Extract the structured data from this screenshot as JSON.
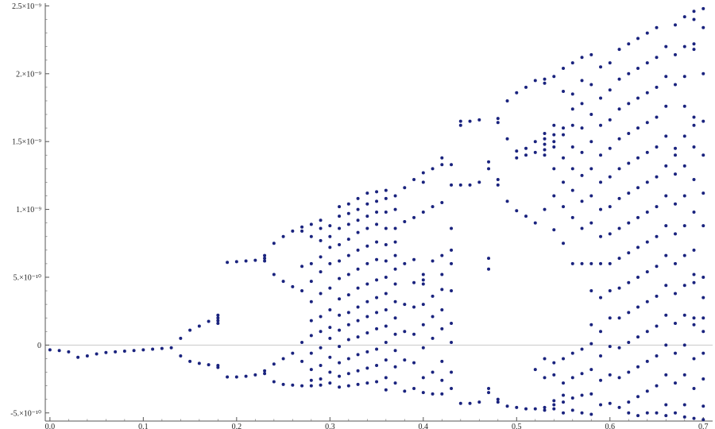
{
  "chart_data": {
    "type": "scatter",
    "title": "",
    "xlabel": "",
    "ylabel": "",
    "xlim": [
      -0.005,
      0.71
    ],
    "ylim": [
      -5.6e-10,
      2.52e-09
    ],
    "grid": false,
    "point_color": "#1a237e",
    "zero_line_color": "#c8c8c8",
    "x_ticks": [
      {
        "value": 0.0,
        "label": "0.0"
      },
      {
        "value": 0.1,
        "label": "0.1"
      },
      {
        "value": 0.2,
        "label": "0.2"
      },
      {
        "value": 0.3,
        "label": "0.3"
      },
      {
        "value": 0.4,
        "label": "0.4"
      },
      {
        "value": 0.5,
        "label": "0.5"
      },
      {
        "value": 0.6,
        "label": "0.6"
      },
      {
        "value": 0.7,
        "label": "0.7"
      }
    ],
    "y_ticks": [
      {
        "value": -5e-10,
        "label": "-5.×10⁻¹⁰"
      },
      {
        "value": 0,
        "label": "0"
      },
      {
        "value": 5e-10,
        "label": "5.×10⁻¹⁰"
      },
      {
        "value": 1e-09,
        "label": "1.×10⁻⁹"
      },
      {
        "value": 1.5e-09,
        "label": "1.5×10⁻⁹"
      },
      {
        "value": 2e-09,
        "label": "2.×10⁻⁹"
      },
      {
        "value": 2.5e-09,
        "label": "2.5×10⁻⁹"
      }
    ],
    "columns": [
      {
        "x": 0.0,
        "y": [
          -3.5e-11
        ]
      },
      {
        "x": 0.01,
        "y": [
          -4e-11
        ]
      },
      {
        "x": 0.02,
        "y": [
          -5e-11
        ]
      },
      {
        "x": 0.03,
        "y": [
          -9e-11
        ]
      },
      {
        "x": 0.04,
        "y": [
          -8e-11
        ]
      },
      {
        "x": 0.05,
        "y": [
          -6.5e-11
        ]
      },
      {
        "x": 0.06,
        "y": [
          -5.5e-11
        ]
      },
      {
        "x": 0.07,
        "y": [
          -5e-11
        ]
      },
      {
        "x": 0.08,
        "y": [
          -4.5e-11
        ]
      },
      {
        "x": 0.09,
        "y": [
          -4e-11
        ]
      },
      {
        "x": 0.1,
        "y": [
          -3.5e-11
        ]
      },
      {
        "x": 0.11,
        "y": [
          -3e-11
        ]
      },
      {
        "x": 0.12,
        "y": [
          -2.5e-11
        ]
      },
      {
        "x": 0.13,
        "y": [
          -2e-11
        ]
      },
      {
        "x": 0.14,
        "y": [
          5e-11,
          -8e-11
        ]
      },
      {
        "x": 0.15,
        "y": [
          1.1e-10,
          -1.2e-10
        ]
      },
      {
        "x": 0.16,
        "y": [
          1.4e-10,
          -1.35e-10
        ]
      },
      {
        "x": 0.17,
        "y": [
          1.75e-10,
          -1.45e-10
        ]
      },
      {
        "x": 0.18,
        "y": [
          2.2e-10,
          2e-10,
          1.8e-10,
          1.6e-10,
          -1.5e-10,
          -1.65e-10
        ]
      },
      {
        "x": 0.19,
        "y": [
          6.1e-10,
          -2.35e-10
        ]
      },
      {
        "x": 0.2,
        "y": [
          6.15e-10,
          -2.35e-10
        ]
      },
      {
        "x": 0.21,
        "y": [
          6.2e-10,
          -2.3e-10
        ]
      },
      {
        "x": 0.22,
        "y": [
          6.25e-10,
          -2.2e-10
        ]
      },
      {
        "x": 0.23,
        "y": [
          6.6e-10,
          6.4e-10,
          6.2e-10,
          -1.9e-10,
          -2.1e-10
        ]
      },
      {
        "x": 0.24,
        "y": [
          7.5e-10,
          5.2e-10,
          -1.4e-10,
          -2.7e-10
        ]
      },
      {
        "x": 0.25,
        "y": [
          8e-10,
          4.7e-10,
          -1e-10,
          -2.9e-10
        ]
      },
      {
        "x": 0.26,
        "y": [
          8.4e-10,
          4.3e-10,
          -6e-11,
          -2.95e-10
        ]
      },
      {
        "x": 0.27,
        "y": [
          8.7e-10,
          8.4e-10,
          5.8e-10,
          4e-10,
          2e-11,
          -1.2e-10,
          -3e-10
        ]
      },
      {
        "x": 0.28,
        "y": [
          8.9e-10,
          8e-10,
          6e-10,
          4.7e-10,
          3.2e-10,
          1.8e-10,
          7e-11,
          -6e-11,
          -1.8e-10,
          -2.6e-10,
          -3e-10
        ]
      },
      {
        "x": 0.29,
        "y": [
          9.2e-10,
          8.6e-10,
          7.7e-10,
          6.5e-10,
          5.4e-10,
          3.8e-10,
          2.1e-10,
          1e-10,
          -2e-11,
          -1.5e-10,
          -2.5e-10,
          -2.95e-10
        ]
      },
      {
        "x": 0.3,
        "y": [
          8.8e-10,
          8e-10,
          7.2e-10,
          6e-10,
          4.2e-10,
          2.6e-10,
          1.3e-10,
          5e-11,
          -9e-11,
          -2e-10,
          -2.8e-10
        ]
      },
      {
        "x": 0.31,
        "y": [
          1.02e-09,
          9.5e-10,
          8.6e-10,
          7.4e-10,
          6.2e-10,
          4.9e-10,
          3.4e-10,
          2.2e-10,
          1.1e-10,
          -1e-11,
          -1.3e-10,
          -2.3e-10,
          -3.1e-10
        ]
      },
      {
        "x": 0.32,
        "y": [
          1.04e-09,
          9.7e-10,
          8.9e-10,
          7.8e-10,
          6.6e-10,
          5.2e-10,
          3.7e-10,
          2.4e-10,
          1.5e-10,
          4e-11,
          -1e-10,
          -2.1e-10,
          -3e-10
        ]
      },
      {
        "x": 0.33,
        "y": [
          1.08e-09,
          1e-09,
          9.2e-10,
          8.3e-10,
          7e-10,
          5.6e-10,
          4.2e-10,
          2.8e-10,
          1.8e-10,
          6e-11,
          -7e-11,
          -1.9e-10,
          -2.9e-10
        ]
      },
      {
        "x": 0.34,
        "y": [
          1.12e-09,
          1.04e-09,
          9.5e-10,
          8.6e-10,
          7.3e-10,
          6e-10,
          4.5e-10,
          3.2e-10,
          2.1e-10,
          9e-11,
          -5e-11,
          -1.7e-10,
          -2.8e-10
        ]
      },
      {
        "x": 0.35,
        "y": [
          1.13e-09,
          1.06e-09,
          9.8e-10,
          8.9e-10,
          7.6e-10,
          6.3e-10,
          4.8e-10,
          3.5e-10,
          2.4e-10,
          1.2e-10,
          -3e-11,
          -1.5e-10,
          -2.7e-10
        ]
      },
      {
        "x": 0.36,
        "y": [
          1.14e-09,
          1.08e-09,
          9.8e-10,
          8.6e-10,
          7.4e-10,
          6.2e-10,
          5e-10,
          3.8e-10,
          2.6e-10,
          1.4e-10,
          2e-11,
          -1.1e-10,
          -2.4e-10,
          -3.3e-10
        ]
      },
      {
        "x": 0.37,
        "y": [
          1.1e-09,
          1e-09,
          8.6e-10,
          7.6e-10,
          6.6e-10,
          5.6e-10,
          4.5e-10,
          3.2e-10,
          2e-10,
          8e-11,
          -4e-11,
          -1.6e-10,
          -2.8e-10
        ]
      },
      {
        "x": 0.38,
        "y": [
          1.16e-09,
          9.1e-10,
          6e-10,
          3e-10,
          1e-10,
          -1.1e-10,
          -3.4e-10
        ]
      },
      {
        "x": 0.39,
        "y": [
          1.22e-09,
          9.4e-10,
          6.3e-10,
          4.6e-10,
          2.8e-10,
          8e-11,
          -1.3e-10,
          -3.2e-10
        ]
      },
      {
        "x": 0.4,
        "y": [
          1.27e-09,
          1.2e-09,
          9.8e-10,
          5.2e-10,
          4.8e-10,
          4.5e-10,
          3e-10,
          1.5e-10,
          -2e-11,
          -2.4e-10,
          -3.5e-10
        ]
      },
      {
        "x": 0.41,
        "y": [
          1.3e-09,
          1.02e-09,
          6.2e-10,
          3.6e-10,
          2.1e-10,
          5e-11,
          -2e-10,
          -3.6e-10
        ]
      },
      {
        "x": 0.42,
        "y": [
          1.38e-09,
          1.33e-09,
          1.05e-09,
          6.6e-10,
          5.2e-10,
          4.1e-10,
          2.6e-10,
          1.2e-10,
          -1.2e-10,
          -2.6e-10,
          -3.6e-10
        ]
      },
      {
        "x": 0.43,
        "y": [
          1.33e-09,
          1.18e-09,
          8.6e-10,
          7e-10,
          6e-10,
          4e-10,
          1.6e-10,
          2e-11,
          -2e-10,
          -3.2e-10
        ]
      },
      {
        "x": 0.44,
        "y": [
          1.65e-09,
          1.62e-09,
          1.18e-09,
          -4.3e-10
        ]
      },
      {
        "x": 0.45,
        "y": [
          1.65e-09,
          1.18e-09,
          -4.3e-10
        ]
      },
      {
        "x": 0.46,
        "y": [
          1.66e-09,
          1.2e-09,
          -4.2e-10
        ]
      },
      {
        "x": 0.47,
        "y": [
          1.35e-09,
          1.3e-09,
          6.4e-10,
          5.6e-10,
          -3.2e-10,
          -3.5e-10
        ]
      },
      {
        "x": 0.48,
        "y": [
          1.67e-09,
          1.64e-09,
          1.22e-09,
          1.18e-09,
          -4e-10,
          -4.2e-10
        ]
      },
      {
        "x": 0.49,
        "y": [
          1.8e-09,
          1.52e-09,
          1.06e-09,
          -4.5e-10
        ]
      },
      {
        "x": 0.5,
        "y": [
          1.86e-09,
          1.43e-09,
          1.38e-09,
          9.9e-10,
          -4.6e-10
        ]
      },
      {
        "x": 0.51,
        "y": [
          1.9e-09,
          1.45e-09,
          1.4e-09,
          9.5e-10,
          -4.7e-10
        ]
      },
      {
        "x": 0.52,
        "y": [
          1.95e-09,
          1.5e-09,
          1.42e-09,
          9e-10,
          -1.8e-10,
          -4.7e-10
        ]
      },
      {
        "x": 0.53,
        "y": [
          1.96e-09,
          1.93e-09,
          1.56e-09,
          1.52e-09,
          1.48e-09,
          1.44e-09,
          1.4e-09,
          1e-09,
          -1e-10,
          -2.4e-10,
          -4.6e-10,
          -4.8e-10
        ]
      },
      {
        "x": 0.54,
        "y": [
          1.98e-09,
          1.62e-09,
          1.55e-09,
          1.5e-09,
          1.46e-09,
          1.3e-09,
          1.1e-09,
          8.5e-10,
          -1.3e-10,
          -2.2e-10,
          -4.1e-10,
          -4.4e-10,
          -4.7e-10
        ]
      },
      {
        "x": 0.55,
        "y": [
          2.04e-09,
          1.87e-09,
          1.6e-09,
          1.55e-09,
          1.38e-09,
          1.2e-09,
          1.02e-09,
          7.5e-10,
          -1e-10,
          -2.8e-10,
          -3.7e-10,
          -4.2e-10,
          -5e-10
        ]
      },
      {
        "x": 0.56,
        "y": [
          2.08e-09,
          1.85e-09,
          1.74e-09,
          1.62e-09,
          1.46e-09,
          1.3e-09,
          1.14e-09,
          9.4e-10,
          6e-10,
          -6e-11,
          -2.4e-10,
          -3.9e-10,
          -4.8e-10
        ]
      },
      {
        "x": 0.57,
        "y": [
          2.12e-09,
          1.95e-09,
          1.78e-09,
          1.6e-09,
          1.42e-09,
          1.25e-09,
          1.06e-09,
          8.6e-10,
          6e-10,
          -3e-11,
          -2.1e-10,
          -3.7e-10,
          -5e-10
        ]
      },
      {
        "x": 0.58,
        "y": [
          2.14e-09,
          1.92e-09,
          1.7e-09,
          1.5e-09,
          1.3e-09,
          1.1e-09,
          9e-10,
          6e-10,
          4e-10,
          1.5e-10,
          1e-11,
          -1.8e-10,
          -3.6e-10,
          -5.1e-10
        ]
      },
      {
        "x": 0.59,
        "y": [
          2.05e-09,
          1.82e-09,
          1.62e-09,
          1.4e-09,
          1.2e-09,
          1e-09,
          8e-10,
          6e-10,
          3.5e-10,
          1e-10,
          -8e-11,
          -2.6e-10,
          -4.4e-10
        ]
      },
      {
        "x": 0.6,
        "y": [
          2.08e-09,
          1.88e-09,
          1.66e-09,
          1.45e-09,
          1.24e-09,
          1.02e-09,
          8.2e-10,
          6e-10,
          4e-10,
          2e-10,
          -1e-11,
          -2.2e-10,
          -4.3e-10
        ]
      },
      {
        "x": 0.61,
        "y": [
          2.18e-09,
          1.96e-09,
          1.74e-09,
          1.52e-09,
          1.3e-09,
          1.08e-09,
          8.6e-10,
          6.4e-10,
          4.2e-10,
          2e-10,
          -2e-11,
          -2.4e-10,
          -4.6e-10
        ]
      },
      {
        "x": 0.62,
        "y": [
          2.22e-09,
          2e-09,
          1.78e-09,
          1.56e-09,
          1.34e-09,
          1.12e-09,
          9e-10,
          6.8e-10,
          4.6e-10,
          2.4e-10,
          2e-11,
          -2e-10,
          -4.2e-10,
          -5e-10
        ]
      },
      {
        "x": 0.63,
        "y": [
          2.26e-09,
          2.04e-09,
          1.82e-09,
          1.6e-09,
          1.38e-09,
          1.16e-09,
          9.4e-10,
          7.2e-10,
          5e-10,
          2.8e-10,
          6e-11,
          -1.6e-10,
          -3.8e-10,
          -5.2e-10
        ]
      },
      {
        "x": 0.64,
        "y": [
          2.3e-09,
          2.08e-09,
          1.86e-09,
          1.64e-09,
          1.42e-09,
          1.2e-09,
          9.8e-10,
          7.6e-10,
          5.4e-10,
          3.2e-10,
          1e-10,
          -1.2e-10,
          -3.4e-10,
          -5e-10
        ]
      },
      {
        "x": 0.65,
        "y": [
          2.34e-09,
          2.12e-09,
          1.9e-09,
          1.68e-09,
          1.46e-09,
          1.24e-09,
          1.02e-09,
          8e-10,
          5.8e-10,
          3.6e-10,
          1.4e-10,
          -8e-11,
          -3e-10,
          -5e-10
        ]
      },
      {
        "x": 0.66,
        "y": [
          2.2e-09,
          1.98e-09,
          1.76e-09,
          1.54e-09,
          1.32e-09,
          1.1e-09,
          8.8e-10,
          6.6e-10,
          4.4e-10,
          2.2e-10,
          0,
          -2.2e-10,
          -4.4e-10,
          -5.2e-10
        ]
      },
      {
        "x": 0.67,
        "y": [
          2.36e-09,
          2.14e-09,
          1.92e-09,
          1.45e-09,
          1.4e-09,
          1.26e-09,
          1.04e-09,
          8.2e-10,
          6e-10,
          3.8e-10,
          1.6e-10,
          -6e-11,
          -2.8e-10,
          -5e-10
        ]
      },
      {
        "x": 0.68,
        "y": [
          2.42e-09,
          2.2e-09,
          1.98e-09,
          1.76e-09,
          1.54e-09,
          1.32e-09,
          1.1e-09,
          8.8e-10,
          6.6e-10,
          4.4e-10,
          2.2e-10,
          0,
          -2.2e-10,
          -4.4e-10,
          -5.3e-10
        ]
      },
      {
        "x": 0.69,
        "y": [
          2.46e-09,
          2.4e-09,
          2.22e-09,
          2.18e-09,
          1.68e-09,
          1.62e-09,
          1.46e-09,
          1.22e-09,
          9.8e-10,
          7e-10,
          5.2e-10,
          4.6e-10,
          2e-10,
          1.5e-10,
          -1e-10,
          -3.2e-10,
          -5.4e-10
        ]
      },
      {
        "x": 0.7,
        "y": [
          2.48e-09,
          2.34e-09,
          2e-09,
          1.65e-09,
          1.4e-09,
          1.12e-09,
          8.8e-10,
          5e-10,
          3.5e-10,
          2e-10,
          1e-10,
          -6e-11,
          -2.5e-10,
          -4.5e-10,
          -5.5e-10
        ]
      }
    ]
  }
}
